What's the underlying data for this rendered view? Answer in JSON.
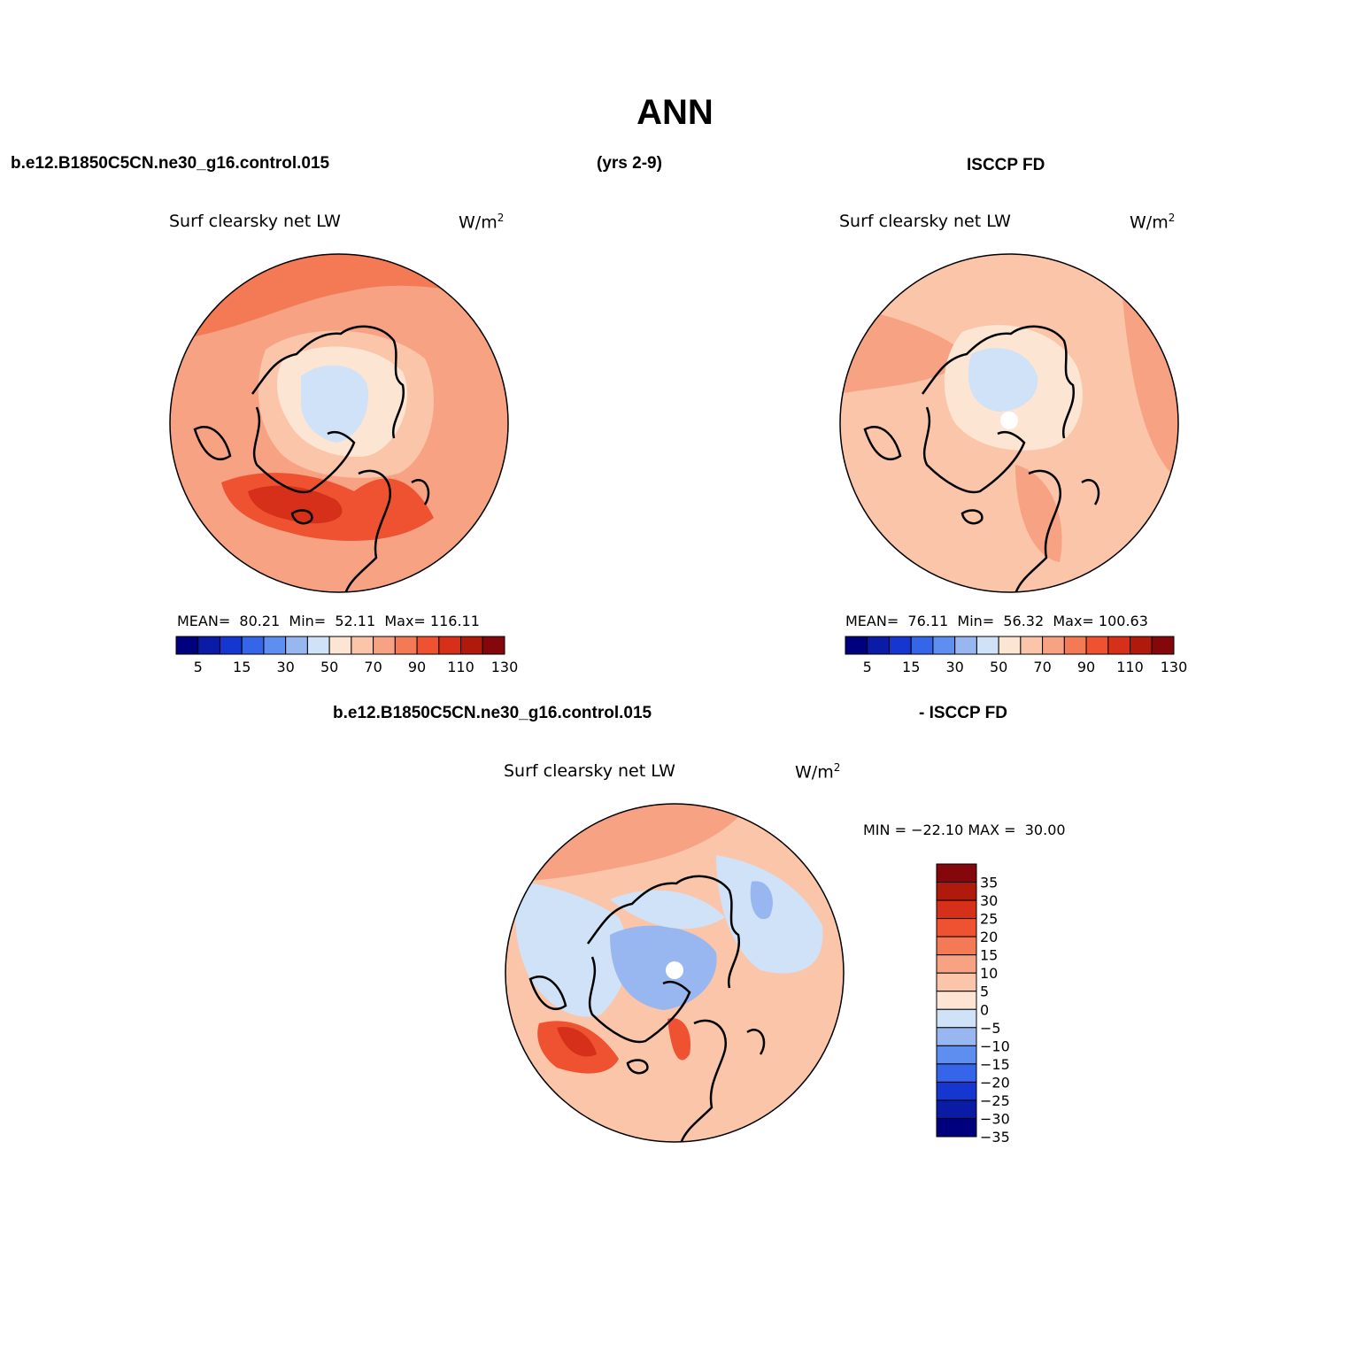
{
  "main_title": "ANN",
  "header": {
    "case_name": "b.e12.B1850C5CN.ne30_g16.control.015",
    "years": "(yrs 2-9)",
    "obs_name": "ISCCP FD"
  },
  "diff_header": {
    "case_name": "b.e12.B1850C5CN.ne30_g16.control.015",
    "obs_name": "- ISCCP FD"
  },
  "panels": {
    "model": {
      "variable": "Surf clearsky net LW",
      "units": "W/m",
      "units_sup": "2",
      "stats": "MEAN=  80.21  Min=  52.11  Max= 116.11"
    },
    "obs": {
      "variable": "Surf clearsky net LW",
      "units": "W/m",
      "units_sup": "2",
      "stats": "MEAN=  76.11  Min=  56.32  Max= 100.63"
    },
    "diff": {
      "variable": "Surf clearsky net LW",
      "units": "W/m",
      "units_sup": "2",
      "stats": "MIN = −22.10 MAX =  30.00"
    }
  },
  "colorbar_abs": {
    "colors": [
      "#00007f",
      "#0a1ba6",
      "#1636d0",
      "#3565e8",
      "#5e8ef0",
      "#98b6f0",
      "#cfe2f7",
      "#fde5d3",
      "#fbc5aa",
      "#f7a283",
      "#f47a55",
      "#ee5230",
      "#d6301a",
      "#b01a0d",
      "#84080b"
    ],
    "tick_labels": [
      "5",
      "15",
      "30",
      "50",
      "70",
      "90",
      "110",
      "130"
    ]
  },
  "colorbar_diff": {
    "colors": [
      "#84080b",
      "#b01a0d",
      "#d6301a",
      "#ee5230",
      "#f47a55",
      "#f7a283",
      "#fbc5aa",
      "#fde5d3",
      "#cfe2f7",
      "#98b6f0",
      "#5e8ef0",
      "#3565e8",
      "#1636d0",
      "#0a1ba6",
      "#00007f"
    ],
    "tick_labels": [
      "35",
      "30",
      "25",
      "20",
      "15",
      "10",
      "5",
      "0",
      "−5",
      "−10",
      "−15",
      "−20",
      "−25",
      "−30",
      "−35"
    ]
  }
}
